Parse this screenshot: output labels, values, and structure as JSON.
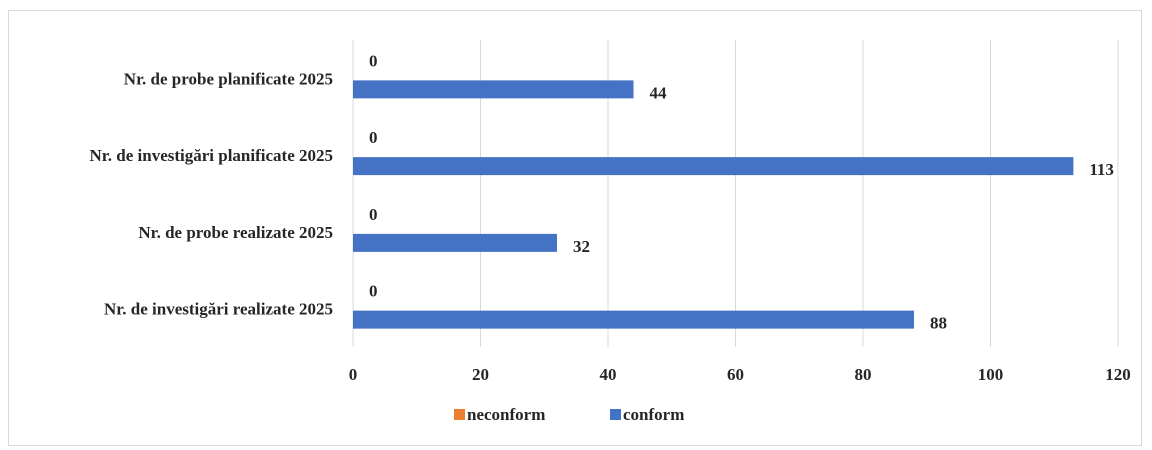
{
  "chart_data": {
    "type": "bar",
    "orientation": "horizontal",
    "categories": [
      "Nr. de probe planificate 2025",
      "Nr. de investigări planificate 2025",
      "Nr. de probe realizate 2025",
      "Nr. de investigări realizate 2025"
    ],
    "series": [
      {
        "name": "neconform",
        "values": [
          0,
          0,
          0,
          0
        ],
        "color": "#ED7D31"
      },
      {
        "name": "conform",
        "values": [
          44,
          113,
          32,
          88
        ],
        "color": "#4472C4"
      }
    ],
    "xlim": [
      0,
      120
    ],
    "x_ticks": [
      "0",
      "20",
      "40",
      "60",
      "80",
      "100",
      "120"
    ],
    "x_tick_values": [
      0,
      20,
      40,
      60,
      80,
      100,
      120
    ],
    "grid": true,
    "gridline_color": "#d9d9d9",
    "legend_position": "bottom",
    "title": "",
    "xlabel": "",
    "ylabel": ""
  }
}
